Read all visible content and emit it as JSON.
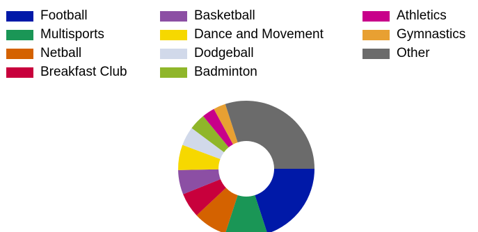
{
  "chart_data": {
    "type": "pie",
    "variant": "donut",
    "legend_position": "top",
    "start_angle": "90deg (3 o'clock), clockwise",
    "series": [
      {
        "label": "Football",
        "value": 20.0,
        "color": "#0019a8"
      },
      {
        "label": "Multisports",
        "value": 10.0,
        "color": "#1a9656"
      },
      {
        "label": "Netball",
        "value": 8.0,
        "color": "#d46200"
      },
      {
        "label": "Breakfast Club",
        "value": 5.9,
        "color": "#c8003c"
      },
      {
        "label": "Basketball",
        "value": 5.8,
        "color": "#8c4fa4"
      },
      {
        "label": "Dance and Movement",
        "value": 6.0,
        "color": "#f6d800"
      },
      {
        "label": "Dodgeball",
        "value": 4.5,
        "color": "#d1d9ea"
      },
      {
        "label": "Badminton",
        "value": 3.9,
        "color": "#8fb62a"
      },
      {
        "label": "Athletics",
        "value": 3.0,
        "color": "#c8008a"
      },
      {
        "label": "Gymnastics",
        "value": 2.9,
        "color": "#e8a032"
      },
      {
        "label": "Other",
        "value": 30.0,
        "color": "#6b6b6b"
      }
    ]
  }
}
